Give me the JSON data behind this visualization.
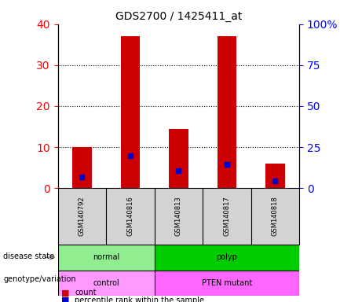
{
  "title": "GDS2700 / 1425411_at",
  "samples": [
    "GSM140792",
    "GSM140816",
    "GSM140813",
    "GSM140817",
    "GSM140818"
  ],
  "counts": [
    10,
    37,
    14.5,
    37,
    6
  ],
  "percentile_ranks": [
    7,
    20,
    10.5,
    14.5,
    4.5
  ],
  "bar_color": "#cc0000",
  "dot_color": "#0000cc",
  "ylim_left": [
    0,
    40
  ],
  "ylim_right": [
    0,
    100
  ],
  "yticks_left": [
    0,
    10,
    20,
    30,
    40
  ],
  "yticks_right": [
    0,
    25,
    50,
    75,
    100
  ],
  "yticklabels_right": [
    "0",
    "25",
    "50",
    "75",
    "100%"
  ],
  "disease_state": {
    "groups": [
      {
        "label": "normal",
        "start": 0,
        "end": 2,
        "color": "#90ee90"
      },
      {
        "label": "polyp",
        "start": 2,
        "end": 5,
        "color": "#00cc00"
      }
    ]
  },
  "genotype_variation": {
    "groups": [
      {
        "label": "control",
        "start": 0,
        "end": 2,
        "color": "#ff99ff"
      },
      {
        "label": "PTEN mutant",
        "start": 2,
        "end": 5,
        "color": "#ff66ff"
      }
    ]
  },
  "legend_items": [
    {
      "label": "count",
      "color": "#cc0000"
    },
    {
      "label": "percentile rank within the sample",
      "color": "#0000cc"
    }
  ],
  "bar_width": 0.4,
  "background_color": "#ffffff",
  "ax_face_color": "#ffffff",
  "grid_color": "#000000",
  "label_row1": "disease state",
  "label_row2": "genotype/variation"
}
